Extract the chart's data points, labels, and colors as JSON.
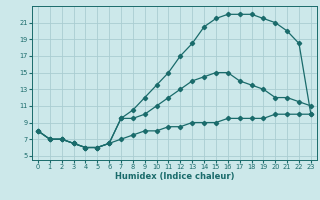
{
  "xlabel": "Humidex (Indice chaleur)",
  "bg_color": "#cce8ea",
  "grid_color": "#aacdd2",
  "line_color": "#1a6b6b",
  "xlim": [
    -0.5,
    23.5
  ],
  "ylim": [
    4.5,
    23
  ],
  "xticks": [
    0,
    1,
    2,
    3,
    4,
    5,
    6,
    7,
    8,
    9,
    10,
    11,
    12,
    13,
    14,
    15,
    16,
    17,
    18,
    19,
    20,
    21,
    22,
    23
  ],
  "yticks": [
    5,
    7,
    9,
    11,
    13,
    15,
    17,
    19,
    21
  ],
  "curve1_x": [
    0,
    1,
    2,
    3,
    4,
    5,
    6,
    7,
    8,
    9,
    10,
    11,
    12,
    13,
    14,
    15,
    16,
    17,
    18,
    19,
    20,
    21,
    22,
    23
  ],
  "curve1_y": [
    8,
    7,
    7,
    6.5,
    6,
    6,
    6.5,
    7,
    7.5,
    8,
    8,
    8.5,
    8.5,
    9,
    9,
    9,
    9.5,
    9.5,
    9.5,
    9.5,
    10,
    10,
    10,
    10
  ],
  "curve2_x": [
    0,
    1,
    2,
    3,
    4,
    5,
    6,
    7,
    8,
    9,
    10,
    11,
    12,
    13,
    14,
    15,
    16,
    17,
    18,
    19,
    20,
    21,
    22,
    23
  ],
  "curve2_y": [
    8,
    7,
    7,
    6.5,
    6,
    6,
    6.5,
    9.5,
    9.5,
    10,
    11,
    12,
    13,
    14,
    14.5,
    15,
    15,
    14,
    13.5,
    13,
    12,
    12,
    11.5,
    11
  ],
  "curve3_x": [
    0,
    1,
    2,
    3,
    4,
    5,
    6,
    7,
    8,
    9,
    10,
    11,
    12,
    13,
    14,
    15,
    16,
    17,
    18,
    19,
    20,
    21,
    22,
    23
  ],
  "curve3_y": [
    8,
    7,
    7,
    6.5,
    6,
    6,
    6.5,
    9.5,
    10.5,
    12,
    13.5,
    15,
    17,
    18.5,
    20.5,
    21.5,
    22,
    22,
    22,
    21.5,
    21,
    20,
    18.5,
    10
  ]
}
